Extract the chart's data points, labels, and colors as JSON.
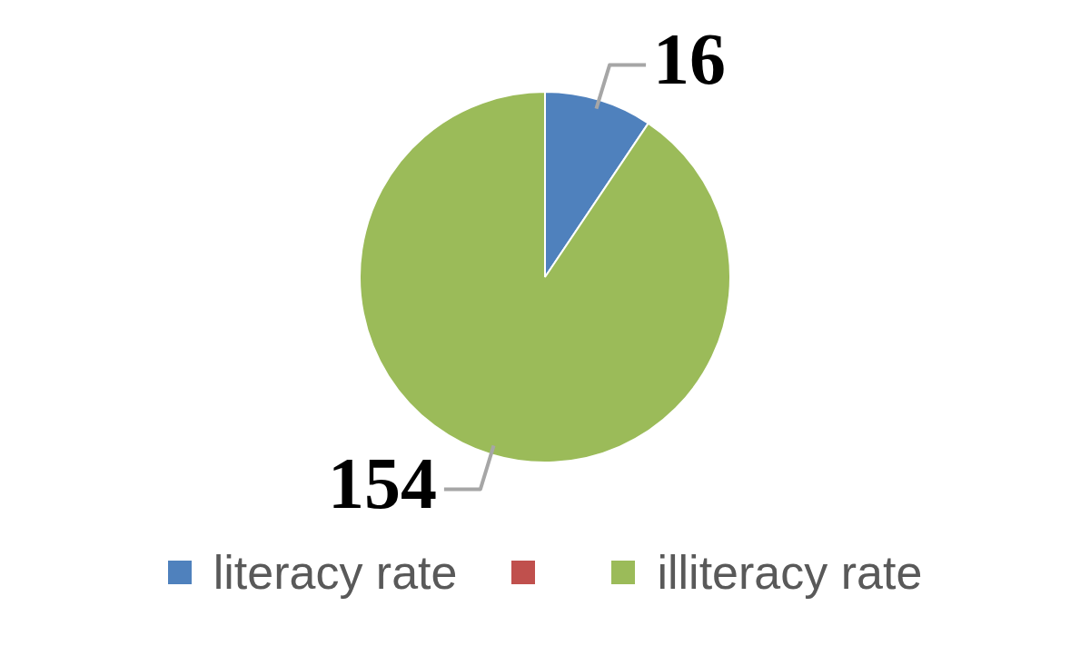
{
  "chart_data": {
    "type": "pie",
    "categories": [
      "literacy rate",
      null,
      "illiteracy rate"
    ],
    "values": [
      16,
      0,
      154
    ],
    "colors": [
      "#4f81bd",
      "#c0504d",
      "#9bbb59"
    ],
    "value_labels": [
      "16",
      null,
      "154"
    ],
    "legend": "bottom"
  }
}
